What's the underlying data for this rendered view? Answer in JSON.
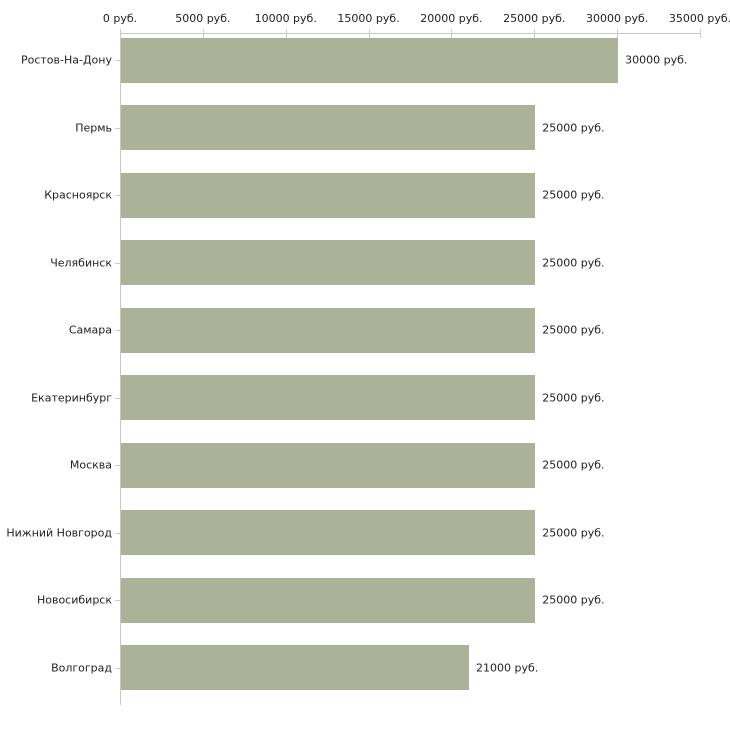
{
  "chart_data": {
    "type": "bar",
    "orientation": "horizontal",
    "title": "",
    "xlabel": "",
    "ylabel": "",
    "unit": "руб.",
    "categories": [
      "Ростов-На-Дону",
      "Пермь",
      "Красноярск",
      "Челябинск",
      "Самара",
      "Екатеринбург",
      "Москва",
      "Нижний Новгород",
      "Новосибирск",
      "Волгоград"
    ],
    "values": [
      30000,
      25000,
      25000,
      25000,
      25000,
      25000,
      25000,
      25000,
      25000,
      21000
    ],
    "value_labels": [
      "30000 руб.",
      "25000 руб.",
      "25000 руб.",
      "25000 руб.",
      "25000 руб.",
      "25000 руб.",
      "25000 руб.",
      "25000 руб.",
      "25000 руб.",
      "21000 руб."
    ],
    "x_tick_values": [
      0,
      5000,
      10000,
      15000,
      20000,
      25000,
      30000,
      35000
    ],
    "x_tick_labels": [
      "0 руб.",
      "5000 руб.",
      "10000 руб.",
      "15000 руб.",
      "20000 руб.",
      "25000 руб.",
      "30000 руб.",
      "35000 руб."
    ],
    "xlim": [
      0,
      35000
    ],
    "grid": false,
    "legend": "none",
    "axis_position": "top-left",
    "colors": {
      "bar": "#abb298",
      "axis": "#c6c6c6",
      "tick": "#cdd0b6",
      "text": "#222222",
      "background": "#ffffff"
    }
  }
}
